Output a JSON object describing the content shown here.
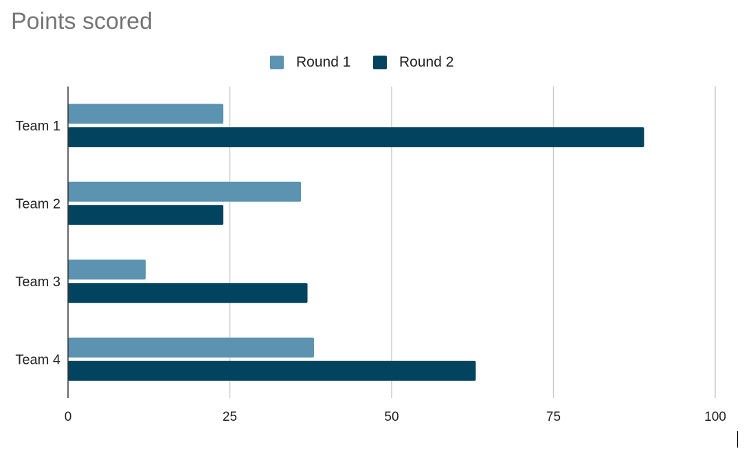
{
  "chart_data": {
    "type": "bar",
    "orientation": "horizontal",
    "title": "Points scored",
    "categories": [
      "Team 1",
      "Team 2",
      "Team 3",
      "Team 4"
    ],
    "series": [
      {
        "name": "Round 1",
        "values": [
          24,
          36,
          12,
          38
        ],
        "color": "#5b93b0"
      },
      {
        "name": "Round 2",
        "values": [
          89,
          24,
          37,
          63
        ],
        "color": "#024460"
      }
    ],
    "xlim": [
      0,
      100
    ],
    "xticks": [
      "0",
      "25",
      "50",
      "75",
      "100"
    ],
    "xlabel": "",
    "ylabel": "",
    "grid": true,
    "legend_position": "top"
  }
}
